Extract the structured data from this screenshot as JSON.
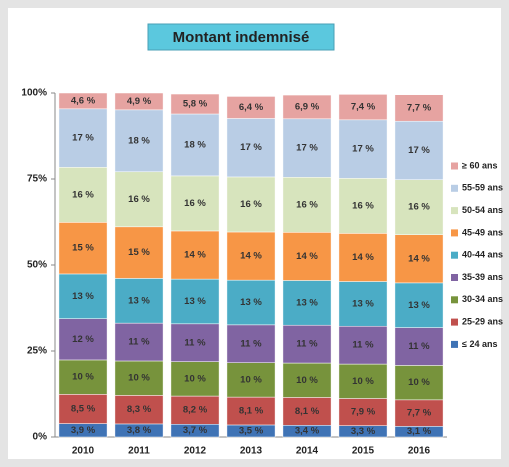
{
  "chart_data": {
    "type": "stacked_bar",
    "title": "Montant indemnisé",
    "categories": [
      "2010",
      "2011",
      "2012",
      "2013",
      "2014",
      "2015",
      "2016"
    ],
    "ylim": [
      0,
      100
    ],
    "yticks": [
      {
        "value": 0,
        "label": "0%"
      },
      {
        "value": 25,
        "label": "25%"
      },
      {
        "value": 50,
        "label": "50%"
      },
      {
        "value": 75,
        "label": "75%"
      },
      {
        "value": 100,
        "label": "100%"
      }
    ],
    "grid": false,
    "legend": "right",
    "series": [
      {
        "name": "≤ 24 ans",
        "color": "#3f73b5",
        "values": [
          3.9,
          3.8,
          3.7,
          3.5,
          3.4,
          3.3,
          3.1
        ],
        "value_labels": [
          "3,9 %",
          "3,8 %",
          "3,7 %",
          "3,5 %",
          "3,4 %",
          "3,3 %",
          "3,1 %"
        ]
      },
      {
        "name": "25-29 ans",
        "color": "#c0504d",
        "values": [
          8.5,
          8.3,
          8.2,
          8.1,
          8.1,
          7.9,
          7.7
        ],
        "value_labels": [
          "8,5 %",
          "8,3 %",
          "8,2 %",
          "8,1 %",
          "8,1 %",
          "7,9 %",
          "7,7 %"
        ]
      },
      {
        "name": "30-34 ans",
        "color": "#77933c",
        "values": [
          10,
          10,
          10,
          10,
          10,
          10,
          10
        ],
        "value_labels": [
          "10 %",
          "10 %",
          "10 %",
          "10 %",
          "10 %",
          "10 %",
          "10 %"
        ]
      },
      {
        "name": "35-39 ans",
        "color": "#8064a2",
        "values": [
          12,
          11,
          11,
          11,
          11,
          11,
          11
        ],
        "value_labels": [
          "12 %",
          "11 %",
          "11 %",
          "11 %",
          "11 %",
          "11 %",
          "11 %"
        ]
      },
      {
        "name": "40-44 ans",
        "color": "#4bacc6",
        "values": [
          13,
          13,
          13,
          13,
          13,
          13,
          13
        ],
        "value_labels": [
          "13 %",
          "13 %",
          "13 %",
          "13 %",
          "13 %",
          "13 %",
          "13 %"
        ]
      },
      {
        "name": "45-49 ans",
        "color": "#f79646",
        "values": [
          15,
          15,
          14,
          14,
          14,
          14,
          14
        ],
        "value_labels": [
          "15 %",
          "15 %",
          "14 %",
          "14 %",
          "14 %",
          "14 %",
          "14 %"
        ]
      },
      {
        "name": "50-54 ans",
        "color": "#d7e4bd",
        "values": [
          16,
          16,
          16,
          16,
          16,
          16,
          16
        ],
        "value_labels": [
          "16 %",
          "16 %",
          "16 %",
          "16 %",
          "16 %",
          "16 %",
          "16 %"
        ]
      },
      {
        "name": "55-59 ans",
        "color": "#b9cde5",
        "values": [
          17,
          18,
          18,
          17,
          17,
          17,
          17
        ],
        "value_labels": [
          "17 %",
          "18 %",
          "18 %",
          "17 %",
          "17 %",
          "17 %",
          "17 %"
        ]
      },
      {
        "name": "≥ 60 ans",
        "color": "#e6a3a1",
        "values": [
          4.6,
          4.9,
          5.8,
          6.4,
          6.9,
          7.4,
          7.7
        ],
        "value_labels": [
          "4,6 %",
          "4,9 %",
          "5,8 %",
          "6,4 %",
          "6,9 %",
          "7,4 %",
          "7,7 %"
        ]
      }
    ]
  }
}
